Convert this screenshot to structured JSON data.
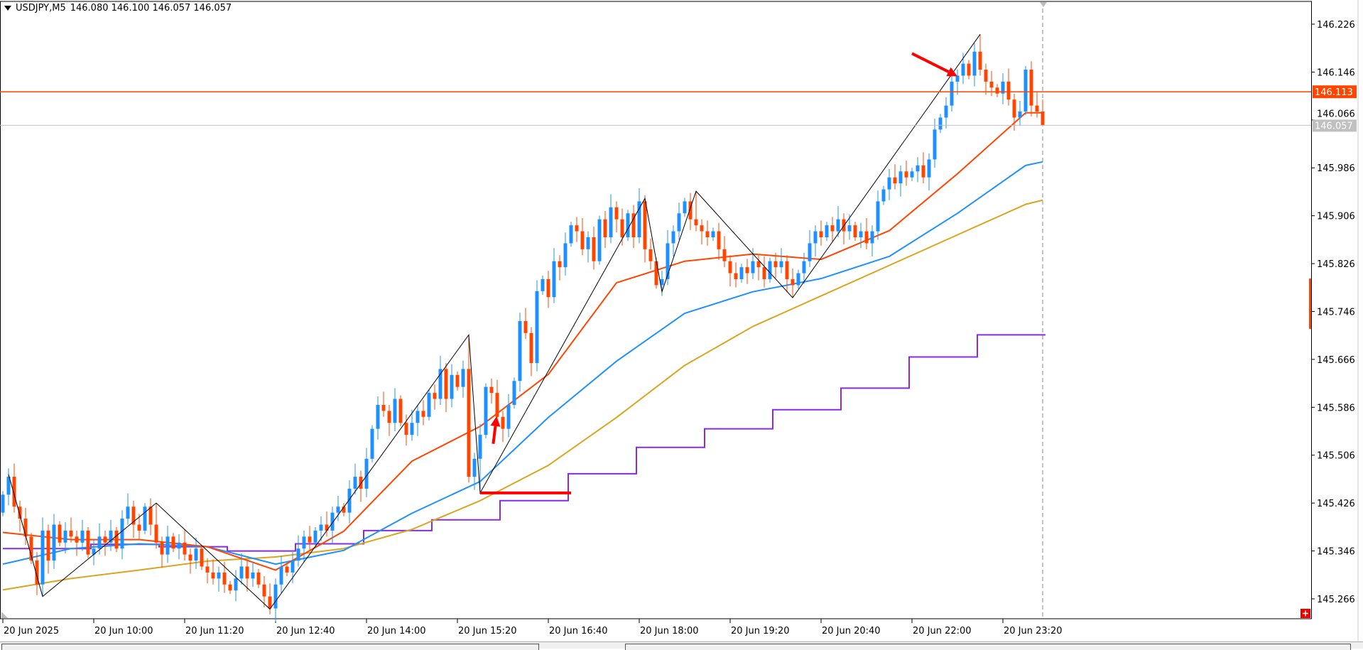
{
  "header": {
    "symbol": "USDJPY,M5",
    "ohlc": "146.080 146.100 146.057 146.057"
  },
  "colors": {
    "bull": "#1e90ff",
    "bear": "#ff4500",
    "doji": "#000000",
    "ema_fast": "#ff4500",
    "ema_mid": "#1e90ff",
    "ema_slow": "#daa520",
    "step_line": "#8a2be2",
    "bid_line": "#ff4500",
    "last_line": "#c0c0c0",
    "annotation": "#ff0000"
  },
  "chart_data": {
    "type": "candlestick",
    "timeframe": "M5",
    "ylim": [
      145.21,
      146.266
    ],
    "y_ticks": [
      "146.226",
      "146.146",
      "146.066",
      "145.986",
      "145.906",
      "145.826",
      "145.746",
      "145.666",
      "145.586",
      "145.506",
      "145.426",
      "145.346",
      "145.266"
    ],
    "x_ticks": [
      "20 Jun 2025",
      "20 Jun 10:00",
      "20 Jun 11:20",
      "20 Jun 12:40",
      "20 Jun 14:00",
      "20 Jun 15:20",
      "20 Jun 16:40",
      "20 Jun 18:00",
      "20 Jun 19:20",
      "20 Jun 20:40",
      "20 Jun 22:00",
      "20 Jun 23:20"
    ],
    "first_bar": "20 Jun 08:40",
    "close": [
      145.44,
      145.47,
      145.42,
      145.4,
      145.37,
      145.33,
      145.29,
      145.38,
      145.33,
      145.39,
      145.36,
      145.38,
      145.37,
      145.36,
      145.38,
      145.34,
      145.35,
      145.37,
      145.36,
      145.38,
      145.35,
      145.4,
      145.42,
      145.39,
      145.38,
      145.42,
      145.39,
      145.36,
      145.34,
      145.37,
      145.35,
      145.36,
      145.34,
      145.33,
      145.35,
      145.32,
      145.31,
      145.3,
      145.31,
      145.29,
      145.28,
      145.3,
      145.32,
      145.3,
      145.31,
      145.29,
      145.27,
      145.25,
      145.29,
      145.32,
      145.31,
      145.33,
      145.35,
      145.37,
      145.36,
      145.38,
      145.39,
      145.38,
      145.41,
      145.42,
      145.41,
      145.45,
      145.47,
      145.45,
      145.5,
      145.55,
      145.59,
      145.58,
      145.56,
      145.6,
      145.56,
      145.54,
      145.56,
      145.58,
      145.57,
      145.61,
      145.6,
      145.65,
      145.6,
      145.64,
      145.62,
      145.65,
      145.47,
      145.5,
      145.54,
      145.62,
      145.61,
      145.57,
      145.55,
      145.59,
      145.63,
      145.73,
      145.71,
      145.66,
      145.78,
      145.8,
      145.77,
      145.83,
      145.82,
      145.86,
      145.89,
      145.88,
      145.85,
      145.87,
      145.83,
      145.9,
      145.87,
      145.92,
      145.9,
      145.87,
      145.91,
      145.87,
      145.93,
      145.85,
      145.83,
      145.79,
      145.8,
      145.86,
      145.88,
      145.91,
      145.93,
      145.9,
      145.89,
      145.88,
      145.87,
      145.88,
      145.85,
      145.83,
      145.81,
      145.8,
      145.82,
      145.81,
      145.83,
      145.82,
      145.8,
      145.83,
      145.82,
      145.83,
      145.8,
      145.79,
      145.81,
      145.83,
      145.86,
      145.88,
      145.87,
      145.89,
      145.88,
      145.9,
      145.88,
      145.89,
      145.87,
      145.88,
      145.86,
      145.88,
      145.93,
      145.95,
      145.97,
      145.96,
      145.98,
      145.97,
      145.98,
      145.99,
      145.97,
      146.0,
      146.05,
      146.07,
      146.09,
      146.13,
      146.14,
      146.16,
      146.14,
      146.18,
      146.15,
      146.13,
      146.12,
      146.11,
      146.13,
      146.1,
      146.07,
      146.08,
      146.15,
      146.09,
      146.08,
      146.057
    ],
    "last_bar": {
      "open": 146.08,
      "high": 146.1,
      "low": 146.057,
      "close": 146.057
    },
    "moving_averages_hourly": {
      "bars": [
        0,
        12,
        24,
        36,
        48,
        60,
        72,
        84,
        96,
        108,
        120,
        132,
        144,
        156,
        168,
        180,
        183
      ],
      "fast": [
        145.377,
        145.365,
        145.365,
        145.353,
        145.314,
        145.379,
        145.496,
        145.554,
        145.641,
        145.794,
        145.83,
        145.842,
        145.833,
        145.881,
        145.976,
        146.078,
        146.078
      ],
      "mid": [
        145.324,
        145.35,
        145.358,
        145.353,
        145.324,
        145.347,
        145.409,
        145.462,
        145.569,
        145.663,
        145.743,
        145.779,
        145.801,
        145.838,
        145.91,
        145.99,
        145.996
      ],
      "slow": [
        145.281,
        145.3,
        145.314,
        145.329,
        145.336,
        145.35,
        145.382,
        145.43,
        145.489,
        145.569,
        145.656,
        145.721,
        145.772,
        145.823,
        145.874,
        145.925,
        145.932
      ]
    },
    "step_line_hourly": {
      "hours": [
        "08",
        "09",
        "10",
        "11",
        "12",
        "13",
        "14",
        "15",
        "16",
        "17",
        "18",
        "19",
        "20",
        "21",
        "22",
        "23"
      ],
      "values": [
        145.35,
        145.35,
        145.357,
        145.353,
        145.346,
        145.358,
        145.38,
        145.398,
        145.43,
        145.475,
        145.519,
        145.55,
        145.582,
        145.618,
        145.67,
        145.707
      ]
    },
    "zigzag": [
      [
        1,
        145.474
      ],
      [
        7,
        145.27
      ],
      [
        27,
        145.426
      ],
      [
        47,
        145.249
      ],
      [
        82,
        145.707
      ],
      [
        84,
        145.443
      ],
      [
        113,
        145.935
      ],
      [
        116,
        145.779
      ],
      [
        122,
        145.947
      ],
      [
        139,
        145.769
      ],
      [
        172,
        146.209
      ]
    ],
    "support_segment": {
      "from_bar": 84,
      "to_bar": 100,
      "price": 145.443
    },
    "arrows": [
      {
        "from": [
          86.3,
          145.525
        ],
        "to": [
          86.9,
          145.571
        ]
      },
      {
        "from": [
          160,
          146.177
        ],
        "to": [
          168,
          146.139
        ]
      }
    ],
    "bid_price": "146.113",
    "last_price": "146.057",
    "right_marker": [
      145.717,
      145.801
    ]
  }
}
